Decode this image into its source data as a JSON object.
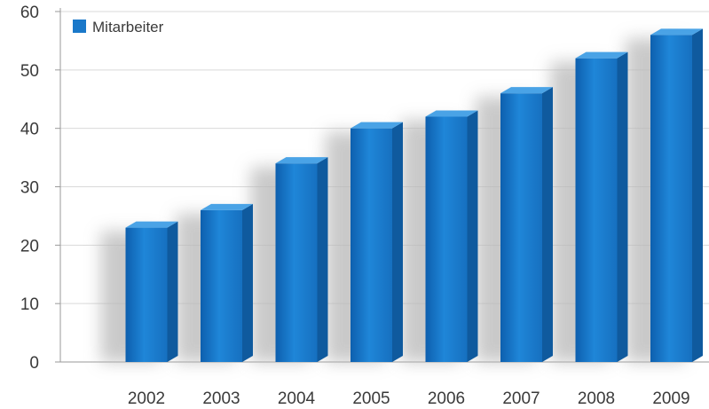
{
  "chart_data": {
    "type": "bar",
    "categories": [
      "2002",
      "2003",
      "2004",
      "2005",
      "2006",
      "2007",
      "2008",
      "2009"
    ],
    "series": [
      {
        "name": "Mitarbeiter",
        "values": [
          23,
          26,
          34,
          40,
          42,
          46,
          52,
          56
        ]
      }
    ],
    "ylim": [
      0,
      60
    ],
    "yticks": [
      0,
      10,
      20,
      30,
      40,
      50,
      60
    ],
    "grid": true,
    "legend": "top-left",
    "colors": {
      "front": "#1a78c9",
      "top": "#4aa3e6",
      "side": "#0f5a9e",
      "shadow": "#b8b8b8",
      "grid": "#d9d9d9"
    }
  }
}
